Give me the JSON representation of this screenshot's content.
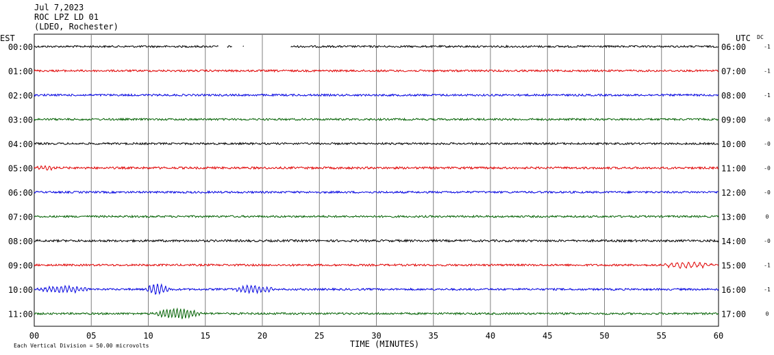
{
  "header": {
    "date": "Jul 7,2023",
    "station": "ROC LPZ LD 01",
    "network": "(LDEO, Rochester)"
  },
  "chart_data": {
    "type": "line",
    "title": "",
    "left_axis_label": "EST",
    "right_axis_label": "UTC",
    "dc_label": "DC",
    "xlabel": "TIME (MINUTES)",
    "xlim": [
      0,
      60
    ],
    "x_ticks": [
      "00",
      "05",
      "10",
      "15",
      "20",
      "25",
      "30",
      "35",
      "40",
      "45",
      "50",
      "55",
      "60"
    ],
    "grid": true,
    "scale_note": "Each Vertical Division =   50.00 microvolts",
    "colors": [
      "#000000",
      "#e00000",
      "#0000e0",
      "#006000"
    ],
    "rows": [
      {
        "est": "00:00",
        "utc": "06:00",
        "dc": "-1",
        "color": "#000000",
        "amp": 0.9,
        "gaps": [
          [
            16.2,
            16.9
          ],
          [
            17.4,
            18.3
          ],
          [
            18.4,
            22.5
          ]
        ],
        "events": []
      },
      {
        "est": "01:00",
        "utc": "07:00",
        "dc": "-1",
        "color": "#e00000",
        "amp": 0.9,
        "gaps": [],
        "events": []
      },
      {
        "est": "02:00",
        "utc": "08:00",
        "dc": "-1",
        "color": "#0000e0",
        "amp": 0.9,
        "gaps": [],
        "events": []
      },
      {
        "est": "03:00",
        "utc": "09:00",
        "dc": "-0",
        "color": "#006000",
        "amp": 0.9,
        "gaps": [],
        "events": []
      },
      {
        "est": "04:00",
        "utc": "10:00",
        "dc": "-0",
        "color": "#000000",
        "amp": 0.9,
        "gaps": [],
        "events": []
      },
      {
        "est": "05:00",
        "utc": "11:00",
        "dc": "-0",
        "color": "#e00000",
        "amp": 1.0,
        "gaps": [],
        "events": [
          [
            0,
            2.0,
            2.5,
            0.35
          ]
        ]
      },
      {
        "est": "06:00",
        "utc": "12:00",
        "dc": "-0",
        "color": "#0000e0",
        "amp": 0.9,
        "gaps": [],
        "events": []
      },
      {
        "est": "07:00",
        "utc": "13:00",
        "dc": "0",
        "color": "#006000",
        "amp": 0.9,
        "gaps": [],
        "events": []
      },
      {
        "est": "08:00",
        "utc": "14:00",
        "dc": "-0",
        "color": "#000000",
        "amp": 1.0,
        "gaps": [],
        "events": []
      },
      {
        "est": "09:00",
        "utc": "15:00",
        "dc": "-1",
        "color": "#e00000",
        "amp": 0.9,
        "gaps": [],
        "events": [
          [
            54.5,
            60,
            4.0,
            0.5
          ]
        ]
      },
      {
        "est": "10:00",
        "utc": "16:00",
        "dc": "-1",
        "color": "#0000e0",
        "amp": 0.9,
        "gaps": [],
        "events": [
          [
            0,
            5.2,
            4.5,
            0.35
          ],
          [
            9.5,
            12.0,
            7.0,
            0.35
          ],
          [
            17.0,
            21.5,
            5.0,
            0.35
          ]
        ]
      },
      {
        "est": "11:00",
        "utc": "17:00",
        "dc": "0",
        "color": "#006000",
        "amp": 0.9,
        "gaps": [],
        "events": [
          [
            10.2,
            15.0,
            7.0,
            0.3
          ]
        ]
      }
    ]
  }
}
